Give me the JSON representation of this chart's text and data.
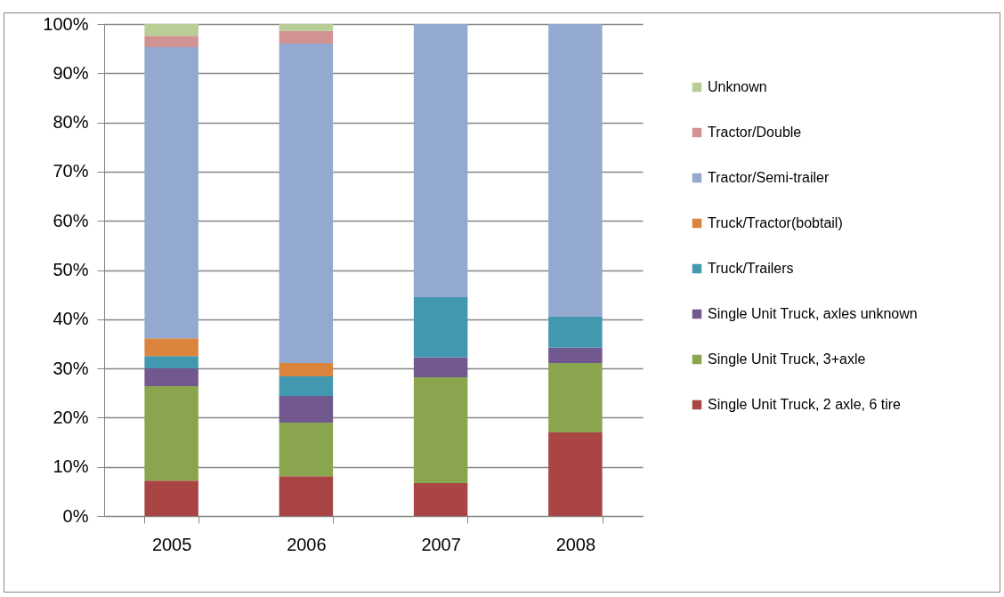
{
  "chart_data": {
    "type": "bar",
    "stacked": true,
    "categories": [
      "2005",
      "2006",
      "2007",
      "2008"
    ],
    "series": [
      {
        "name": "Single Unit Truck,  2 axle, 6 tire",
        "color": "#a94544",
        "values": [
          7.2,
          8.1,
          6.7,
          17.0
        ]
      },
      {
        "name": "Single Unit Truck, 3+axle",
        "color": "#89a54e",
        "values": [
          19.2,
          10.9,
          21.5,
          14.1
        ]
      },
      {
        "name": "Single Unit Truck, axles unknown",
        "color": "#71588f",
        "values": [
          3.6,
          5.4,
          4.1,
          3.1
        ]
      },
      {
        "name": "Truck/Trailers",
        "color": "#4198af",
        "values": [
          2.5,
          4.0,
          12.2,
          6.3
        ]
      },
      {
        "name": "Truck/Tractor(bobtail)",
        "color": "#db843d",
        "values": [
          3.6,
          2.7,
          0,
          0
        ]
      },
      {
        "name": "Tractor/Semi-trailer",
        "color": "#93a9cf",
        "values": [
          59.2,
          64.9,
          55.5,
          59.5
        ]
      },
      {
        "name": "Tractor/Double",
        "color": "#d19392",
        "values": [
          2.3,
          2.6,
          0,
          0
        ]
      },
      {
        "name": "Unknown",
        "color": "#b9cd96",
        "values": [
          2.4,
          1.4,
          0,
          0
        ]
      }
    ],
    "ylim": [
      0,
      100
    ],
    "yticks": [
      {
        "value": 0,
        "label": "0%"
      },
      {
        "value": 10,
        "label": "10%"
      },
      {
        "value": 20,
        "label": "20%"
      },
      {
        "value": 30,
        "label": "30%"
      },
      {
        "value": 40,
        "label": "40%"
      },
      {
        "value": 50,
        "label": "50%"
      },
      {
        "value": 60,
        "label": "60%"
      },
      {
        "value": 70,
        "label": "70%"
      },
      {
        "value": 80,
        "label": "80%"
      },
      {
        "value": 90,
        "label": "90%"
      },
      {
        "value": 100,
        "label": "100%"
      }
    ],
    "grid": "y",
    "legend": "right"
  }
}
